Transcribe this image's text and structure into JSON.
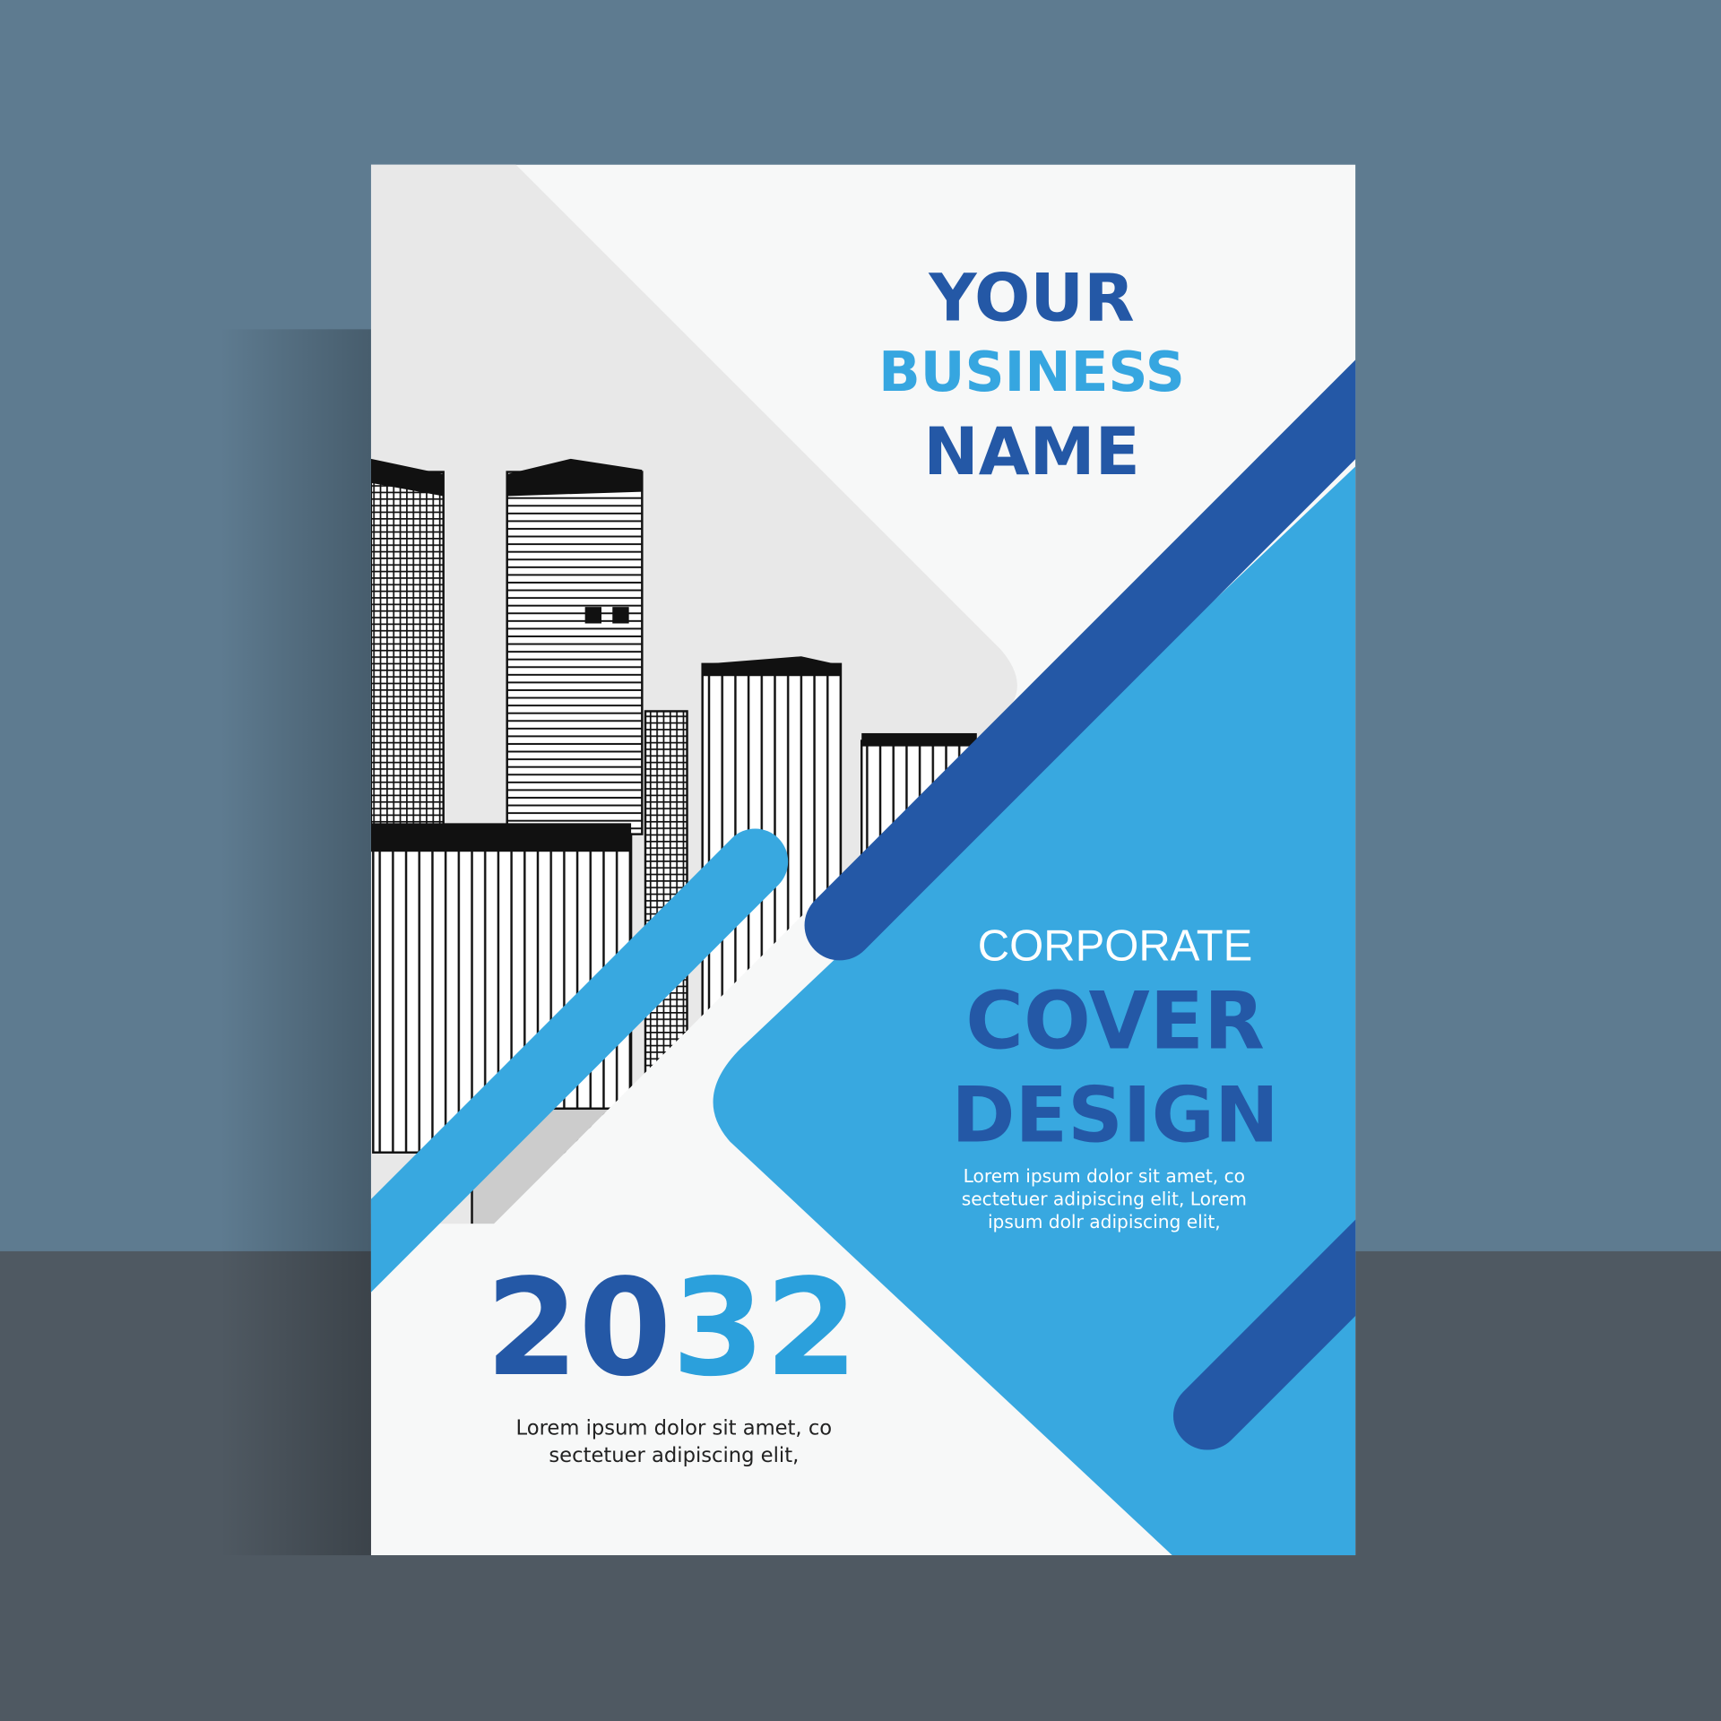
{
  "cover": {
    "title_lines": [
      "YOUR",
      "BUSINESS",
      "NAME"
    ],
    "subtitle_light": "CORPORATE",
    "subtitle_bold": [
      "COVER",
      "DESIGN"
    ],
    "blurb_lines": [
      "Lorem ipsum dolor sit amet, co",
      "sectetuer adipiscing elit,  Lorem",
      "ipsum dolr adipiscing elit,"
    ],
    "year_part1": "20",
    "year_part2": "32",
    "footer_lines": [
      "Lorem ipsum dolor sit amet, co",
      "sectetuer adipiscing elit,"
    ]
  },
  "colors": {
    "wall": "#5e7b90",
    "floor": "#4f5962",
    "paper": "#f7f8f8",
    "gray_panel": "#e8e8e8",
    "dark_blue": "#2458a6",
    "light_blue": "#38a8e0"
  }
}
